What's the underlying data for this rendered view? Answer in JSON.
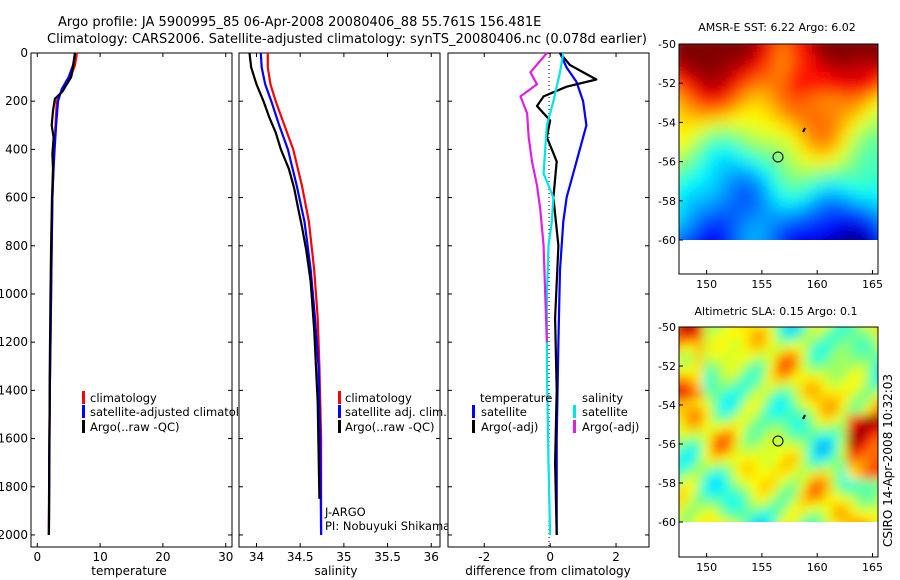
{
  "header": {
    "line1": "Argo profile: JA 5900995_85 06-Apr-2008 20080406_88 55.761S 156.481E",
    "line2": "Climatology: CARS2006. Satellite-adjusted climatology: synTS_20080406.nc (0.078d earlier)"
  },
  "panels": {
    "temperature": {
      "legend": [
        "climatology",
        "satellite-adjusted climatology",
        "Argo(..raw -QC)"
      ]
    },
    "salinity": {
      "legend": [
        "climatology",
        "satellite adj. clim.",
        "Argo(..raw -QC)"
      ],
      "annotations": [
        "J-ARGO",
        "PI: Nobuyuki Shikama"
      ]
    },
    "difference": {
      "legend_headers": [
        "temperature",
        "salinity"
      ],
      "legend_left": [
        "satellite",
        "Argo(-adj)"
      ],
      "legend_right": [
        "satellite",
        "Argo(-adj)"
      ]
    },
    "sst_map": {
      "title": "AMSR-E SST: 6.22 Argo: 6.02"
    },
    "sla_map": {
      "title": "Altimetric SLA: 0.15 Argo: 0.1"
    }
  },
  "footer": {
    "credit": "CSIRO 14-Apr-2008 10:32:03"
  },
  "colors": {
    "climatology": "#ff0000",
    "satellite": "#0000ff",
    "argo": "#000000",
    "sal_satellite": "#00e5e5",
    "sal_argo": "#e020e0"
  },
  "chart_data": [
    {
      "type": "line",
      "panel": "temperature",
      "xlabel": "temperature",
      "ylabel": "",
      "xlim": [
        -1,
        31
      ],
      "ylim": [
        2050,
        0
      ],
      "xticks": [
        0,
        10,
        20,
        30
      ],
      "yticks": [
        0,
        200,
        400,
        600,
        800,
        1000,
        1200,
        1400,
        1600,
        1800,
        2000
      ],
      "series": [
        {
          "name": "climatology",
          "color": "#ff0000",
          "x": [
            6.3,
            6.0,
            5.3,
            4.0,
            3.1,
            2.9,
            2.7,
            2.55,
            2.4,
            2.3,
            2.2,
            2.1,
            2.0,
            1.9,
            1.85
          ],
          "y": [
            0,
            50,
            100,
            150,
            200,
            300,
            400,
            500,
            600,
            800,
            1000,
            1200,
            1400,
            1700,
            2000
          ]
        },
        {
          "name": "satellite-adjusted climatology",
          "color": "#0000ff",
          "x": [
            6.0,
            5.7,
            5.0,
            3.9,
            3.3,
            3.0,
            2.75,
            2.55,
            2.4,
            2.3,
            2.2,
            2.1,
            2.0,
            1.9,
            1.85
          ],
          "y": [
            0,
            50,
            100,
            150,
            200,
            300,
            400,
            500,
            600,
            800,
            1000,
            1200,
            1400,
            1700,
            2000
          ]
        },
        {
          "name": "Argo(..raw -QC)",
          "color": "#000000",
          "x": [
            6.0,
            5.8,
            5.4,
            4.0,
            2.8,
            2.5,
            2.3,
            2.6,
            2.4,
            2.5,
            2.35,
            2.2,
            2.1,
            2.0,
            1.95,
            1.85
          ],
          "y": [
            0,
            40,
            100,
            160,
            190,
            240,
            300,
            350,
            420,
            480,
            600,
            800,
            1000,
            1300,
            1600,
            2000
          ]
        }
      ]
    },
    {
      "type": "line",
      "panel": "salinity",
      "xlabel": "salinity",
      "ylabel": "",
      "xlim": [
        33.8,
        36.1
      ],
      "ylim": [
        2050,
        0
      ],
      "xticks": [
        34,
        34.5,
        35,
        35.5,
        36
      ],
      "yticks": [
        0,
        200,
        400,
        600,
        800,
        1000,
        1200,
        1400,
        1600,
        1800,
        2000
      ],
      "series": [
        {
          "name": "climatology",
          "color": "#ff0000",
          "x": [
            34.13,
            34.13,
            34.16,
            34.22,
            34.32,
            34.42,
            34.52,
            34.6,
            34.66,
            34.7,
            34.72,
            34.74,
            34.74
          ],
          "y": [
            0,
            60,
            130,
            200,
            300,
            400,
            550,
            700,
            900,
            1100,
            1300,
            1600,
            2000
          ]
        },
        {
          "name": "satellite adj. clim.",
          "color": "#0000ff",
          "x": [
            34.05,
            34.06,
            34.1,
            34.17,
            34.26,
            34.36,
            34.46,
            34.55,
            34.62,
            34.67,
            34.71,
            34.73,
            34.74
          ],
          "y": [
            0,
            60,
            130,
            200,
            300,
            400,
            550,
            700,
            900,
            1100,
            1300,
            1600,
            2000
          ]
        },
        {
          "name": "Argo(..raw -QC)",
          "color": "#000000",
          "x": [
            33.92,
            33.94,
            34.0,
            34.08,
            34.15,
            34.22,
            34.28,
            34.37,
            34.43,
            34.48,
            34.52,
            34.57,
            34.62,
            34.66,
            34.7,
            34.72
          ],
          "y": [
            0,
            60,
            130,
            200,
            270,
            330,
            400,
            480,
            560,
            650,
            720,
            820,
            950,
            1150,
            1450,
            1850
          ]
        }
      ]
    },
    {
      "type": "line",
      "panel": "difference",
      "xlabel": "difference from climatology",
      "ylabel": "",
      "xlim": [
        -3.1,
        3.0
      ],
      "ylim": [
        2050,
        0
      ],
      "xticks": [
        -2,
        0,
        2
      ],
      "yticks": [
        0,
        200,
        400,
        600,
        800,
        1000,
        1200,
        1400,
        1600,
        1800,
        2000
      ],
      "series": [
        {
          "name": "temperature satellite",
          "color": "#0000ff",
          "x": [
            0.3,
            0.5,
            0.8,
            1.0,
            1.1,
            0.9,
            0.7,
            0.5,
            0.4,
            0.3,
            0.25,
            0.2,
            0.2
          ],
          "y": [
            0,
            60,
            120,
            200,
            300,
            400,
            500,
            600,
            700,
            900,
            1200,
            1600,
            2000
          ]
        },
        {
          "name": "temperature Argo(-adj)",
          "color": "#000000",
          "x": [
            0.3,
            0.6,
            1.4,
            0.5,
            -0.2,
            -0.4,
            0.0,
            -0.1,
            0.2,
            0.1,
            0.25,
            0.15,
            0.2,
            0.15,
            0.2
          ],
          "y": [
            0,
            50,
            110,
            140,
            180,
            220,
            280,
            350,
            450,
            600,
            800,
            1100,
            1400,
            1700,
            2000
          ]
        },
        {
          "name": "salinity satellite",
          "color": "#00e5e5",
          "x": [
            0.4,
            0.3,
            0.1,
            -0.1,
            -0.15,
            -0.2,
            0.1,
            0.05,
            -0.05,
            -0.1,
            -0.1,
            -0.05,
            0.0
          ],
          "y": [
            0,
            80,
            200,
            300,
            400,
            500,
            600,
            700,
            800,
            1000,
            1300,
            1700,
            2000
          ]
        },
        {
          "name": "salinity Argo(-adj)",
          "color": "#e020e0",
          "x": [
            -0.1,
            -0.6,
            -0.4,
            -0.9,
            -0.7,
            -0.65,
            -0.55,
            -0.4,
            -0.3,
            -0.2,
            -0.15,
            -0.1
          ],
          "y": [
            0,
            80,
            130,
            180,
            250,
            350,
            450,
            550,
            650,
            800,
            1000,
            1200
          ]
        }
      ]
    },
    {
      "type": "heatmap",
      "panel": "sst_map",
      "title": "AMSR-E SST: 6.22 Argo: 6.02",
      "xlim": [
        147.5,
        165.5
      ],
      "ylim": [
        -60,
        -50
      ],
      "xticks": [
        150,
        155,
        160,
        165
      ],
      "yticks": [
        -50,
        -52,
        -54,
        -56,
        -58,
        -60
      ],
      "argo_position": [
        156.481,
        -55.761
      ]
    },
    {
      "type": "heatmap",
      "panel": "sla_map",
      "title": "Altimetric SLA: 0.15 Argo: 0.1",
      "xlim": [
        147.5,
        165.5
      ],
      "ylim": [
        -60,
        -50
      ],
      "xticks": [
        150,
        155,
        160,
        165
      ],
      "yticks": [
        -50,
        -52,
        -54,
        -56,
        -58,
        -60
      ],
      "argo_position": [
        156.481,
        -55.761
      ]
    }
  ]
}
